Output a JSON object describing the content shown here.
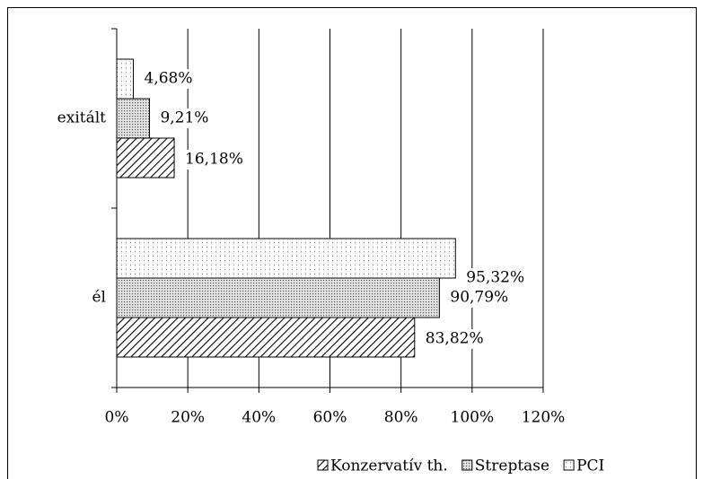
{
  "chart_data": {
    "type": "hbar",
    "categories": [
      "exitált",
      "él"
    ],
    "series": [
      {
        "name": "Konzervatív th.",
        "color": "#000000",
        "pattern": "diagonal",
        "values": [
          16.18,
          83.82
        ],
        "value_labels": [
          "16,18%",
          "83,82%"
        ]
      },
      {
        "name": "Streptase",
        "color": "#000000",
        "pattern": "dense-dots",
        "values": [
          9.21,
          90.79
        ],
        "value_labels": [
          "9,21%",
          "90,79%"
        ]
      },
      {
        "name": "PCI",
        "color": "#000000",
        "pattern": "sparse-grid",
        "values": [
          4.68,
          95.32
        ],
        "value_labels": [
          "4,68%",
          "95,32%"
        ]
      }
    ],
    "xlim": [
      0,
      120
    ],
    "xticks": [
      {
        "value": 0,
        "label": "0%"
      },
      {
        "value": 20,
        "label": "20%"
      },
      {
        "value": 40,
        "label": "40%"
      },
      {
        "value": 60,
        "label": "60%"
      },
      {
        "value": 80,
        "label": "80%"
      },
      {
        "value": 100,
        "label": "100%"
      },
      {
        "value": 120,
        "label": "120%"
      }
    ],
    "grid": true,
    "legend": "bottom"
  }
}
